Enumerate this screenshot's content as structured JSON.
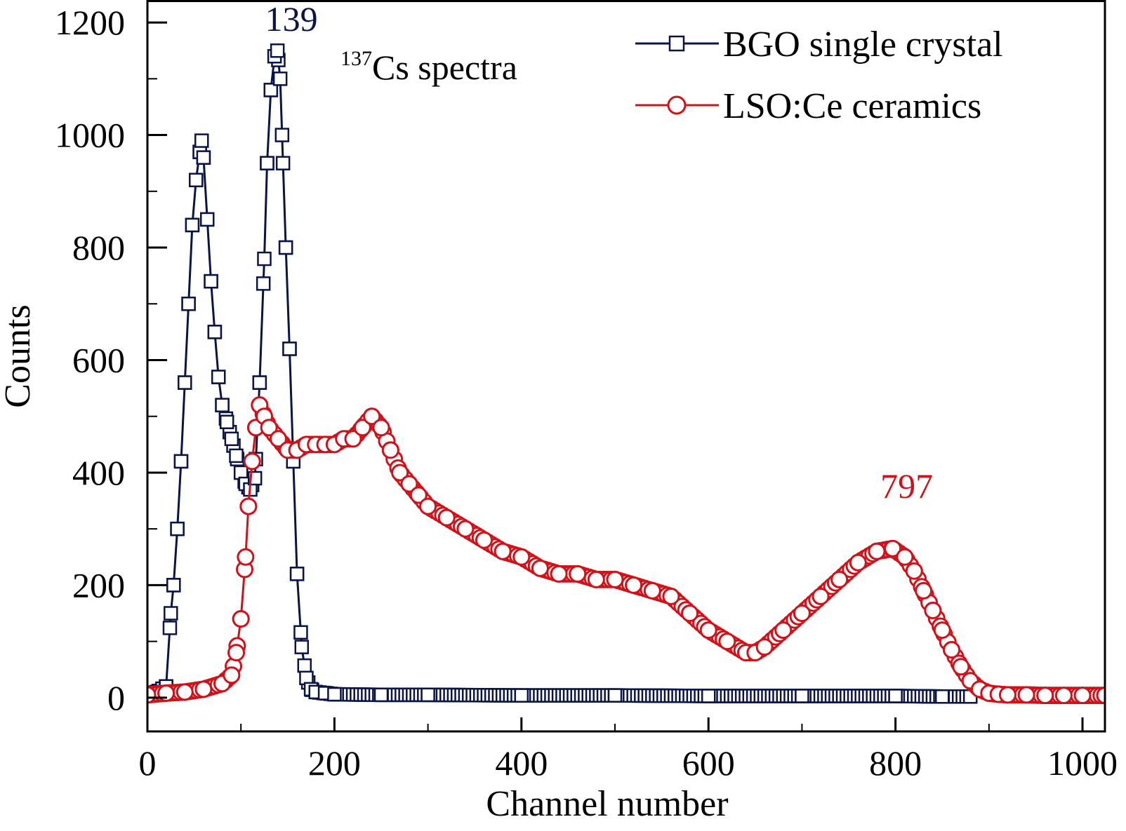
{
  "chart_data": {
    "type": "scatter",
    "title": "",
    "xlabel": "Channel number",
    "ylabel": "Counts",
    "xlim": [
      0,
      1024
    ],
    "ylim": [
      -60,
      1240
    ],
    "x_ticks": [
      "0",
      "200",
      "400",
      "600",
      "800",
      "1000"
    ],
    "y_ticks": [
      "0",
      "200",
      "400",
      "600",
      "800",
      "1000",
      "1200"
    ],
    "x_tick_values": [
      0,
      200,
      400,
      600,
      800,
      1000
    ],
    "y_tick_values": [
      0,
      200,
      400,
      600,
      800,
      1000,
      1200
    ],
    "x_minor_tick_values": [
      100,
      300,
      500,
      700,
      900
    ],
    "y_minor_tick_values": [
      100,
      300,
      500,
      700,
      900,
      1100
    ],
    "grid": false,
    "legend_position": "top-right",
    "annotation": {
      "text_sup": "137",
      "text_main": "Cs spectra"
    },
    "peak_labels": [
      {
        "text": "139",
        "x": 139,
        "y": 1185,
        "color": "#0b1446"
      },
      {
        "text": "797",
        "x": 797,
        "y": 355,
        "color": "#d0121b"
      }
    ],
    "series": [
      {
        "name": "BGO single crystal",
        "color": "#0b1446",
        "marker": "square",
        "x": [
          0,
          10,
          20,
          25,
          28,
          32,
          36,
          40,
          44,
          48,
          52,
          56,
          58,
          60,
          64,
          68,
          72,
          76,
          80,
          85,
          90,
          95,
          100,
          105,
          110,
          115,
          120,
          125,
          128,
          132,
          136,
          139,
          142,
          145,
          148,
          152,
          156,
          160,
          165,
          170,
          175,
          180,
          190,
          200,
          250,
          300,
          400,
          500,
          600,
          700,
          800,
          850,
          880
        ],
        "y": [
          5,
          10,
          20,
          150,
          200,
          300,
          420,
          560,
          700,
          840,
          920,
          970,
          990,
          960,
          850,
          740,
          650,
          570,
          520,
          490,
          460,
          430,
          400,
          380,
          370,
          390,
          560,
          780,
          950,
          1080,
          1140,
          1150,
          1100,
          950,
          800,
          620,
          420,
          220,
          90,
          35,
          15,
          10,
          8,
          6,
          5,
          5,
          4,
          4,
          3,
          3,
          3,
          2,
          2
        ]
      },
      {
        "name": "LSO:Ce ceramics",
        "color": "#d0121b",
        "marker": "circle",
        "x": [
          0,
          20,
          40,
          60,
          80,
          90,
          95,
          100,
          105,
          108,
          112,
          116,
          120,
          125,
          130,
          140,
          150,
          160,
          170,
          180,
          190,
          200,
          210,
          220,
          230,
          240,
          250,
          260,
          270,
          280,
          290,
          300,
          320,
          340,
          360,
          380,
          400,
          420,
          440,
          460,
          480,
          500,
          520,
          540,
          560,
          580,
          600,
          620,
          640,
          650,
          660,
          680,
          700,
          720,
          740,
          760,
          780,
          797,
          810,
          820,
          830,
          840,
          850,
          860,
          870,
          880,
          890,
          900,
          910,
          920,
          940,
          960,
          980,
          1000,
          1024
        ],
        "y": [
          5,
          8,
          10,
          15,
          25,
          40,
          80,
          140,
          250,
          340,
          420,
          480,
          520,
          500,
          480,
          460,
          440,
          440,
          450,
          450,
          450,
          450,
          460,
          460,
          480,
          500,
          480,
          440,
          400,
          380,
          360,
          340,
          320,
          300,
          280,
          260,
          250,
          230,
          220,
          220,
          210,
          210,
          200,
          190,
          180,
          150,
          120,
          100,
          80,
          80,
          90,
          120,
          150,
          180,
          210,
          240,
          260,
          265,
          250,
          225,
          190,
          155,
          120,
          85,
          55,
          30,
          15,
          8,
          6,
          5,
          5,
          4,
          4,
          4,
          4
        ]
      }
    ]
  }
}
